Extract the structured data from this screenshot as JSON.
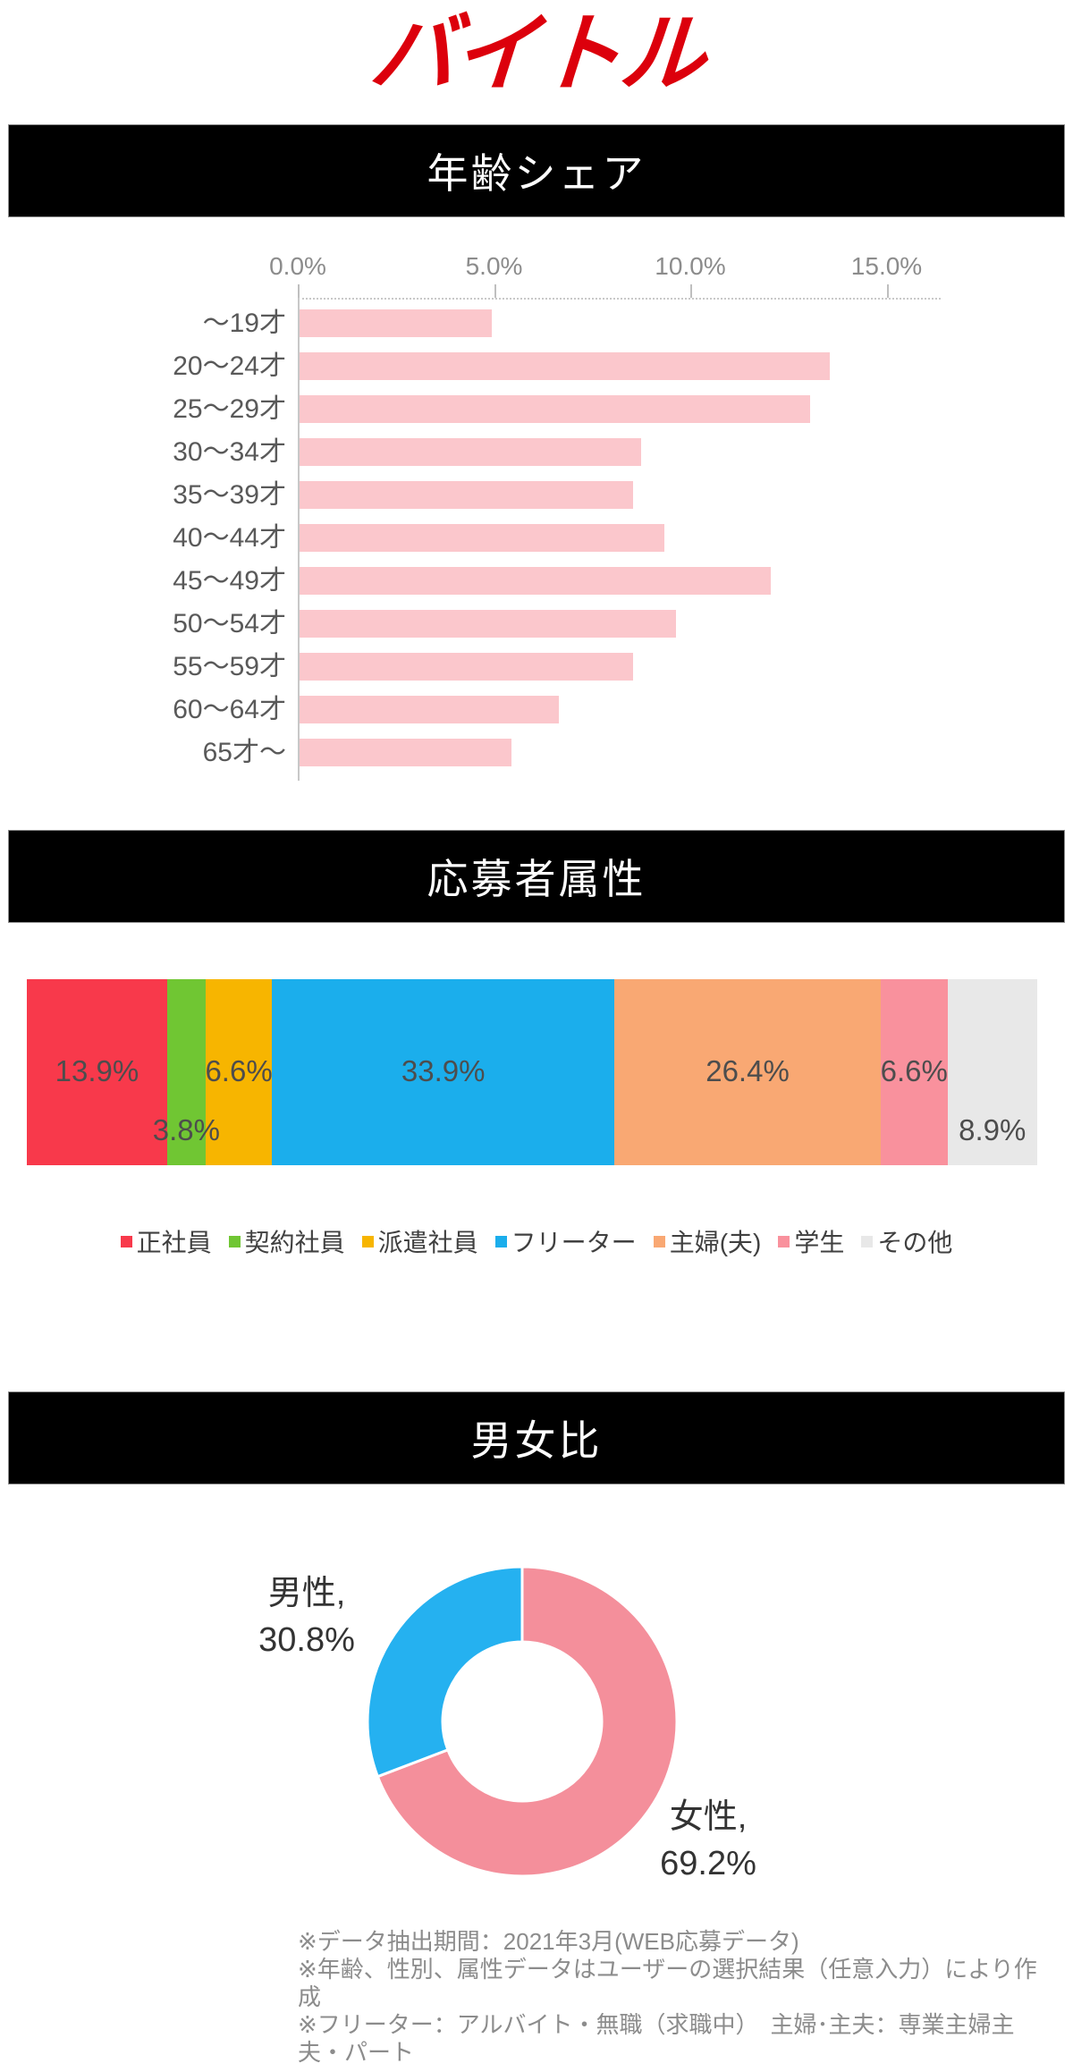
{
  "brand": {
    "logo_text": "バイトル",
    "logo_color": "#DC000C"
  },
  "sections": {
    "age": {
      "title": "年齢シェア"
    },
    "attributes": {
      "title": "応募者属性"
    },
    "gender": {
      "title": "男女比"
    }
  },
  "chart_data": [
    {
      "type": "bar",
      "orientation": "horizontal",
      "title": "年齢シェア",
      "categories": [
        "～19才",
        "20～24才",
        "25～29才",
        "30～34才",
        "35～39才",
        "40～44才",
        "45～49才",
        "50～54才",
        "55～59才",
        "60～64才",
        "65才～"
      ],
      "values": [
        4.9,
        13.5,
        13.0,
        8.7,
        8.5,
        9.3,
        12.0,
        9.6,
        8.5,
        6.6,
        5.4
      ],
      "unit": "%",
      "xlim": [
        0,
        16.3
      ],
      "ticks": [
        {
          "value": 0,
          "label": "0.0%"
        },
        {
          "value": 5,
          "label": "5.0%"
        },
        {
          "value": 10,
          "label": "10.0%"
        },
        {
          "value": 15,
          "label": "15.0%"
        }
      ],
      "bar_color": "#FBC7CC",
      "grid": "dotted-top",
      "legend_position": "none"
    },
    {
      "type": "bar",
      "subtype": "stacked-horizontal",
      "title": "応募者属性",
      "unit": "%",
      "label_color": "#4D4D4D",
      "segments": [
        {
          "label": "正社員",
          "value": 13.9,
          "display": "13.9%",
          "color": "#F8394B",
          "label_row": "middle"
        },
        {
          "label": "契約社員",
          "value": 3.8,
          "display": "3.8%",
          "color": "#70C633",
          "label_row": "low"
        },
        {
          "label": "派遣社員",
          "value": 6.6,
          "display": "6.6%",
          "color": "#F7B500",
          "label_row": "middle"
        },
        {
          "label": "フリーター",
          "value": 33.9,
          "display": "33.9%",
          "color": "#1BAEEC",
          "label_row": "middle"
        },
        {
          "label": "主婦(夫)",
          "value": 26.4,
          "display": "26.4%",
          "color": "#F9A873",
          "label_row": "middle"
        },
        {
          "label": "学生",
          "value": 6.6,
          "display": "6.6%",
          "color": "#F9919D",
          "label_row": "middle"
        },
        {
          "label": "その他",
          "value": 8.9,
          "display": "8.9%",
          "color": "#E8E8E8",
          "label_row": "low"
        }
      ],
      "legend_position": "bottom"
    },
    {
      "type": "pie",
      "subtype": "donut",
      "title": "男女比",
      "start_angle_deg": 0,
      "direction": "clockwise",
      "slices": [
        {
          "label": "女性",
          "value": 69.2,
          "color": "#F48F9B",
          "callout_line1": "女性,",
          "callout_line2": "69.2%"
        },
        {
          "label": "男性",
          "value": 30.8,
          "color": "#25B1F0",
          "callout_line1": "男性,",
          "callout_line2": "30.8%"
        }
      ]
    }
  ],
  "footnotes": {
    "lines": [
      "※データ抽出期間：2021年3月(WEB応募データ)",
      "※年齢、性別、属性データはユーザーの選択結果（任意入力）により作成",
      "※フリーター：アルバイト・無職（求職中）　主婦･主夫：専業主婦主夫・パート"
    ]
  }
}
